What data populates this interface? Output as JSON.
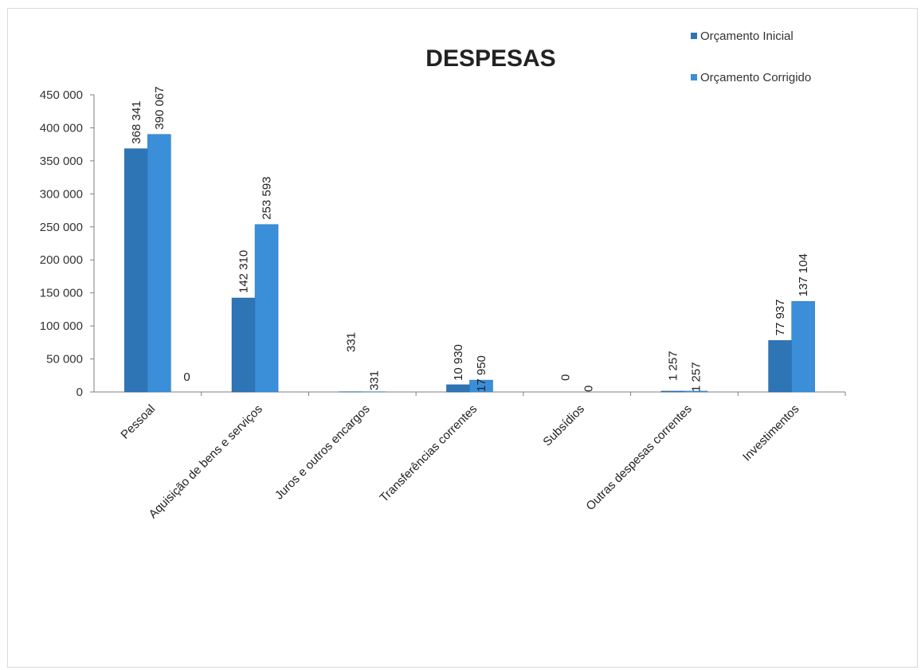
{
  "chart_data": {
    "type": "bar",
    "title": "DESPESAS",
    "xlabel": "",
    "ylabel": "",
    "ylim": [
      0,
      450000
    ],
    "yticks": [
      0,
      50000,
      100000,
      150000,
      200000,
      250000,
      300000,
      350000,
      400000,
      450000
    ],
    "ytick_labels": [
      "0",
      "50 000",
      "100 000",
      "150 000",
      "200 000",
      "250 000",
      "300 000",
      "350 000",
      "400 000",
      "450 000"
    ],
    "categories": [
      "Pessoal",
      "Aquisição de bens e serviços",
      "Juros e outros encargos",
      "Transferências correntes",
      "Subsídios",
      "Outras despesas correntes",
      "Investimentos"
    ],
    "series": [
      {
        "name": "Orçamento Inicial",
        "color": "#2e75b6",
        "values": [
          368341,
          142310,
          331,
          10930,
          0,
          1257,
          77937
        ],
        "labels": [
          "368 341",
          "142 310",
          "331",
          "10 930",
          "0",
          "1 257",
          "77 937"
        ]
      },
      {
        "name": "Orçamento Corrigido",
        "color": "#3b8fd9",
        "values": [
          390067,
          253593,
          331,
          17950,
          0,
          1257,
          137104
        ],
        "labels": [
          "390 067",
          "253 593",
          "331",
          "17 950",
          "0",
          "1 257",
          "137 104"
        ]
      }
    ],
    "extra_labels": [
      "0"
    ],
    "legend_position": "top-right",
    "grid": false
  }
}
